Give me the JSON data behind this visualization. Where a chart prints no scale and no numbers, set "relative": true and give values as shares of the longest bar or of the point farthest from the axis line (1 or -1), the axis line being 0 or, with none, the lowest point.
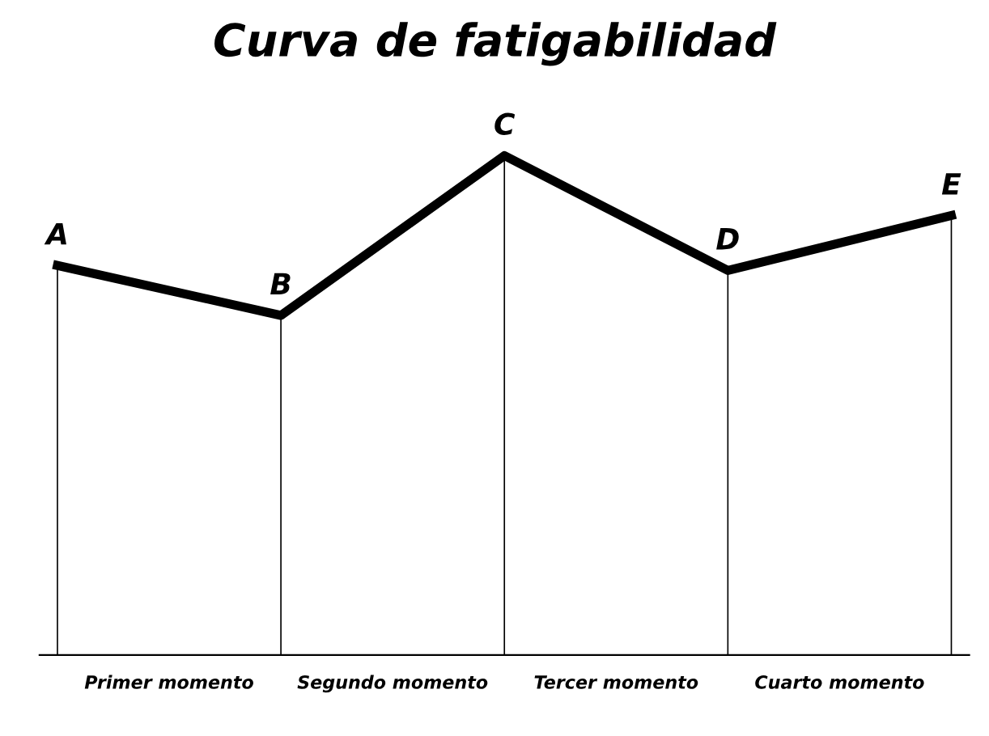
{
  "chart_data": {
    "type": "line",
    "title": "Curva de fatigabilidad",
    "relative": true,
    "categories": [
      "A",
      "B",
      "C",
      "D",
      "E"
    ],
    "series": [
      {
        "color": "#000000",
        "values": [
          0.78,
          0.68,
          1,
          0.77,
          0.88
        ]
      },
      {
        "type": "bar",
        "color": "#000000",
        "values": [
          0.78,
          0.68,
          1,
          0.77,
          0.88
        ]
      }
    ],
    "annotations": [
      "Primer momento",
      "Segundo momento",
      "Tercer momento",
      "Cuarto momento"
    ],
    "marker": "none",
    "line_style": "solid"
  }
}
